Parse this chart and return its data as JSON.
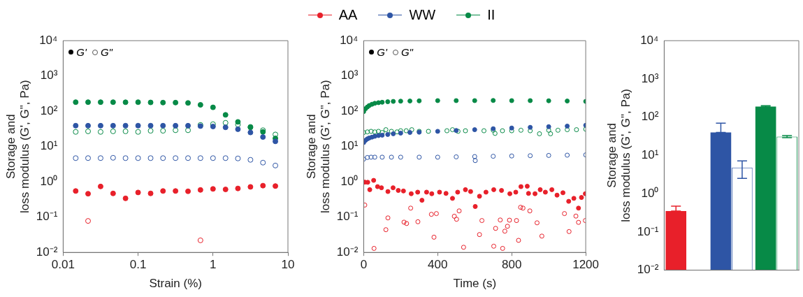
{
  "chart_data": [
    {
      "type": "scatter",
      "xlabel": "Strain (%)",
      "ylabel": "Storage and\nloss modulus (G', G\", Pa)",
      "log": "xy",
      "legend": "top",
      "marker": "circle",
      "annotations": [
        "G'",
        "G\""
      ],
      "xlim": [
        0.01,
        10
      ],
      "xticks": [
        0.01,
        0.1,
        1,
        10
      ],
      "ylim": [
        0.01,
        10000
      ],
      "yticks": [
        {
          "value": 0.01,
          "label": "10⁻²"
        },
        {
          "value": 0.1,
          "label": "10⁻¹"
        },
        {
          "value": 1,
          "label": "10⁰"
        },
        {
          "value": 10,
          "label": "10¹"
        },
        {
          "value": 100,
          "label": "10²"
        },
        {
          "value": 1000,
          "label": "10³"
        },
        {
          "value": 10000,
          "label": "10⁴"
        }
      ],
      "x": [
        0.0147,
        0.0215,
        0.0316,
        0.0464,
        0.068,
        0.1,
        0.147,
        0.215,
        0.316,
        0.464,
        0.68,
        1,
        1.47,
        2.15,
        3.16,
        4.64,
        6.8
      ],
      "series": [
        {
          "name": "AA",
          "color": "#e8202a",
          "values": [
            0.55,
            0.46,
            0.74,
            0.47,
            0.34,
            0.5,
            0.47,
            0.55,
            0.55,
            0.54,
            0.59,
            0.63,
            0.61,
            0.65,
            0.72,
            0.78,
            0.76
          ]
        },
        {
          "color": "#e8202a",
          "values": [
            null,
            0.078,
            null,
            null,
            null,
            null,
            null,
            null,
            null,
            null,
            0.022,
            null,
            null,
            null,
            null,
            null,
            null
          ]
        },
        {
          "name": "WW",
          "color": "#2e55a5",
          "values": [
            39,
            39,
            39,
            39,
            39,
            39,
            39,
            39,
            39,
            39,
            38,
            37,
            35,
            31,
            25,
            18.6,
            14
          ]
        },
        {
          "color": "#2e55a5",
          "values": [
            4.7,
            4.7,
            4.7,
            4.8,
            4.7,
            4.7,
            4.7,
            4.7,
            4.7,
            4.7,
            4.7,
            4.7,
            4.7,
            4.6,
            4.2,
            3.5,
            2.9
          ]
        },
        {
          "name": "II",
          "color": "#078a47",
          "values": [
            181,
            181,
            181,
            181,
            180,
            181,
            178,
            176,
            176,
            172,
            152,
            129,
            79,
            50,
            35,
            26,
            17
          ]
        },
        {
          "color": "#078a47",
          "values": [
            26,
            27,
            26,
            27,
            27,
            26,
            28,
            28,
            29,
            29,
            41,
            43,
            47,
            42,
            36,
            29,
            22
          ]
        }
      ]
    },
    {
      "type": "scatter",
      "xlabel": "Time (s)",
      "ylabel": "Storage and\nloss modulus (G', G\", Pa)",
      "log": "y",
      "marker": "circle",
      "annotations": [
        "G'",
        "G\""
      ],
      "xlim": [
        0,
        1200
      ],
      "xticks": [
        0,
        400,
        800,
        1200
      ],
      "ylim": [
        0.01,
        10000
      ],
      "yticks": [
        {
          "value": 0.01,
          "label": "10⁻²"
        },
        {
          "value": 0.1,
          "label": "10⁻¹"
        },
        {
          "value": 1,
          "label": "10⁰"
        },
        {
          "value": 10,
          "label": "10¹"
        },
        {
          "value": 100,
          "label": "10²"
        },
        {
          "value": 1000,
          "label": "10³"
        },
        {
          "value": 10000,
          "label": "10⁴"
        }
      ],
      "series": [
        {
          "color": "#e8202a",
          "x": [
            6,
            22,
            33,
            54,
            75,
            96,
            131,
            159,
            187,
            215,
            257,
            292,
            315,
            340,
            368,
            410,
            445,
            480,
            508,
            550,
            578,
            603,
            626,
            661,
            703,
            745,
            790,
            822,
            850,
            884,
            891,
            926,
            954,
            982,
            1017,
            1045,
            1077,
            1108,
            1136,
            1161,
            1177,
            1198
          ],
          "values": [
            0.98,
            0.97,
            0.6,
            1.1,
            0.73,
            0.68,
            0.53,
            0.68,
            0.57,
            0.55,
            0.46,
            0.51,
            0.3,
            0.51,
            0.46,
            0.51,
            0.47,
            0.34,
            0.51,
            0.6,
            0.53,
            0.2,
            0.39,
            0.51,
            0.6,
            0.57,
            0.46,
            0.51,
            0.73,
            0.75,
            0.47,
            0.46,
            0.6,
            0.51,
            0.6,
            0.42,
            0.49,
            0.28,
            0.34,
            0.18,
            0.36,
            0.46
          ]
        },
        {
          "color": "#e8202a",
          "x": [
            6,
            56,
            120,
            131,
            218,
            232,
            254,
            293,
            366,
            380,
            393,
            490,
            502,
            516,
            540,
            626,
            639,
            703,
            713,
            738,
            751,
            763,
            777,
            788,
            826,
            837,
            848,
            861,
            898,
            937,
            963,
            1085,
            1110,
            1147,
            1161,
            1198
          ],
          "values": [
            0.22,
            0.013,
            0.044,
            0.095,
            0.072,
            0.066,
            0.18,
            0.074,
            0.12,
            0.027,
            0.126,
            0.106,
            0.087,
            0.15,
            0.014,
            0.032,
            0.08,
            0.015,
            0.048,
            0.083,
            0.013,
            0.04,
            0.055,
            0.082,
            0.08,
            0.022,
            0.19,
            0.18,
            0.15,
            0.069,
            0.029,
            0.126,
            0.039,
            0.107,
            0.071,
            0.08
          ]
        },
        {
          "color": "#2e55a5",
          "x": [
            0,
            10,
            20,
            30,
            45,
            60,
            80,
            100,
            130,
            160,
            200,
            250,
            300,
            400,
            500,
            600,
            700,
            800,
            900,
            1000,
            1100,
            1200
          ],
          "values": [
            13,
            15,
            16.5,
            17.5,
            18.5,
            19.5,
            20.5,
            21,
            22,
            23,
            24,
            25,
            25.5,
            27,
            28.5,
            30,
            32,
            33.5,
            35,
            36.5,
            38,
            40
          ]
        },
        {
          "color": "#2e55a5",
          "x": [
            0,
            20,
            40,
            60,
            100,
            150,
            200,
            300,
            400,
            500,
            600,
            603,
            700,
            800,
            900,
            1000,
            1100,
            1200
          ],
          "values": [
            4.4,
            4.9,
            5,
            5,
            5,
            5,
            5,
            5,
            5,
            5.1,
            5.2,
            4,
            5.3,
            5.4,
            5.5,
            5.6,
            5.7,
            5.8
          ]
        },
        {
          "color": "#078a47",
          "x": [
            0,
            10,
            20,
            30,
            45,
            60,
            80,
            100,
            130,
            160,
            200,
            250,
            300,
            400,
            500,
            600,
            700,
            800,
            900,
            1000,
            1100,
            1200
          ],
          "values": [
            98,
            118,
            132,
            145,
            158,
            168,
            175,
            180,
            186,
            190,
            193,
            195,
            197,
            200,
            200,
            200,
            202,
            200,
            200,
            198,
            195,
            190
          ]
        },
        {
          "color": "#078a47",
          "x": [
            0,
            20,
            40,
            60,
            80,
            100,
            120,
            150,
            180,
            200,
            230,
            260,
            300,
            350,
            450,
            480,
            510,
            550,
            650,
            700,
            710,
            750,
            800,
            850,
            900,
            950,
            1000,
            1010,
            1050,
            1100,
            1150,
            1200
          ],
          "values": [
            25,
            26,
            27,
            26,
            27,
            25,
            30,
            27,
            26,
            28,
            28,
            30,
            27,
            27,
            28,
            30,
            27,
            28,
            28,
            29,
            23.6,
            28,
            28,
            29,
            28,
            23,
            29,
            23,
            29,
            30,
            30,
            31
          ]
        }
      ]
    },
    {
      "type": "bar",
      "ylabel": "Storage and\nloss modulus (G', G\", Pa)",
      "log": true,
      "categories": [
        null,
        null,
        null
      ],
      "ylim": [
        0.01,
        10000
      ],
      "yticks": [
        {
          "value": 0.01,
          "label": "10⁻²"
        },
        {
          "value": 0.1,
          "label": "10⁻¹"
        },
        {
          "value": 1,
          "label": "10⁰"
        },
        {
          "value": 10,
          "label": "10¹"
        },
        {
          "value": 100,
          "label": "10²"
        },
        {
          "value": 1000,
          "label": "10³"
        },
        {
          "value": 10000,
          "label": "10⁴"
        }
      ],
      "series": [
        {
          "colors": [
            "#e8202a",
            "#2e55a5",
            "#078a47"
          ],
          "values": [
            0.35,
            40,
            190
          ],
          "errors": [
            [
              0.35,
              0.47
            ],
            [
              40,
              70
            ],
            [
              185,
              200
            ]
          ]
        },
        {
          "colors": [
            "#e8202a",
            "#2e55a5",
            "#078a47"
          ],
          "values": [
            null,
            4.8,
            31
          ],
          "errors": [
            null,
            [
              2.5,
              7.2
            ],
            [
              29,
              33
            ]
          ]
        }
      ]
    }
  ]
}
